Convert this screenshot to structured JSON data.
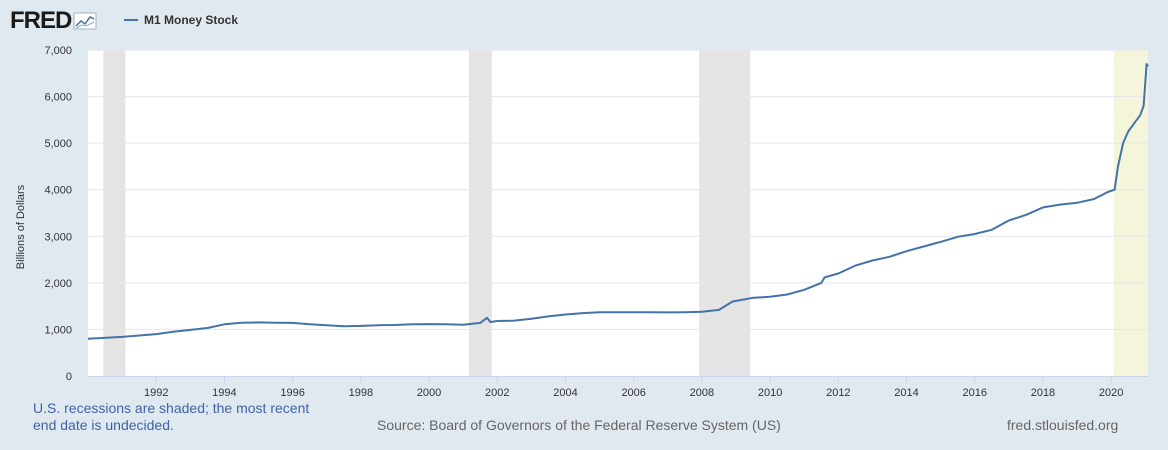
{
  "header": {
    "logo_text": "FRED",
    "legend_label": "M1 Money Stock"
  },
  "footer": {
    "recession_note": "U.S. recessions are shaded; the most recent end date is undecided.",
    "source": "Source: Board of Governors of the Federal Reserve System (US)",
    "url": "fred.stlouisfed.org"
  },
  "colors": {
    "line": "#4572a7",
    "recession": "#e4e4e4",
    "recession_ongoing": "#f5f5dc",
    "background": "#e1e9f0"
  },
  "chart_data": {
    "type": "line",
    "title": "",
    "ylabel": "Billions of Dollars",
    "xlabel": "",
    "xlim": [
      1990.0,
      2021.08
    ],
    "ylim": [
      0,
      7000
    ],
    "y_ticks": [
      0,
      1000,
      2000,
      3000,
      4000,
      5000,
      6000,
      7000
    ],
    "y_tick_labels": [
      "0",
      "1,000",
      "2,000",
      "3,000",
      "4,000",
      "5,000",
      "6,000",
      "7,000"
    ],
    "x_ticks": [
      1992,
      1994,
      1996,
      1998,
      2000,
      2002,
      2004,
      2006,
      2008,
      2010,
      2012,
      2014,
      2016,
      2018,
      2020
    ],
    "x_tick_labels": [
      "1992",
      "1994",
      "1996",
      "1998",
      "2000",
      "2002",
      "2004",
      "2006",
      "2008",
      "2010",
      "2012",
      "2014",
      "2016",
      "2018",
      "2020"
    ],
    "grid": true,
    "recessions": [
      {
        "start": 1990.45,
        "end": 1991.1
      },
      {
        "start": 2001.17,
        "end": 2001.84
      },
      {
        "start": 2007.92,
        "end": 2009.42
      },
      {
        "start": 2020.08,
        "end": 2021.08,
        "ongoing": true
      }
    ],
    "series": [
      {
        "name": "M1 Money Stock",
        "points": [
          [
            1990.0,
            800
          ],
          [
            1991.0,
            840
          ],
          [
            1992.0,
            900
          ],
          [
            1992.5,
            950
          ],
          [
            1993.0,
            990
          ],
          [
            1993.5,
            1030
          ],
          [
            1994.0,
            1110
          ],
          [
            1994.5,
            1145
          ],
          [
            1995.0,
            1150
          ],
          [
            1995.5,
            1145
          ],
          [
            1996.0,
            1140
          ],
          [
            1996.5,
            1110
          ],
          [
            1997.0,
            1090
          ],
          [
            1997.5,
            1070
          ],
          [
            1998.0,
            1075
          ],
          [
            1998.5,
            1090
          ],
          [
            1999.0,
            1095
          ],
          [
            1999.5,
            1110
          ],
          [
            2000.0,
            1115
          ],
          [
            2000.5,
            1110
          ],
          [
            2001.0,
            1100
          ],
          [
            2001.5,
            1140
          ],
          [
            2001.7,
            1250
          ],
          [
            2001.8,
            1160
          ],
          [
            2002.0,
            1180
          ],
          [
            2002.5,
            1190
          ],
          [
            2003.0,
            1230
          ],
          [
            2003.5,
            1280
          ],
          [
            2004.0,
            1320
          ],
          [
            2004.5,
            1350
          ],
          [
            2005.0,
            1370
          ],
          [
            2005.5,
            1370
          ],
          [
            2006.0,
            1370
          ],
          [
            2006.5,
            1370
          ],
          [
            2007.0,
            1365
          ],
          [
            2007.5,
            1370
          ],
          [
            2008.0,
            1380
          ],
          [
            2008.5,
            1420
          ],
          [
            2008.9,
            1600
          ],
          [
            2009.5,
            1680
          ],
          [
            2010.0,
            1700
          ],
          [
            2010.5,
            1750
          ],
          [
            2011.0,
            1850
          ],
          [
            2011.5,
            2000
          ],
          [
            2011.6,
            2120
          ],
          [
            2012.0,
            2200
          ],
          [
            2012.5,
            2370
          ],
          [
            2013.0,
            2480
          ],
          [
            2013.5,
            2560
          ],
          [
            2014.0,
            2680
          ],
          [
            2014.5,
            2780
          ],
          [
            2015.0,
            2880
          ],
          [
            2015.5,
            2990
          ],
          [
            2016.0,
            3050
          ],
          [
            2016.5,
            3140
          ],
          [
            2017.0,
            3340
          ],
          [
            2017.5,
            3460
          ],
          [
            2018.0,
            3620
          ],
          [
            2018.5,
            3680
          ],
          [
            2019.0,
            3720
          ],
          [
            2019.5,
            3800
          ],
          [
            2019.9,
            3950
          ],
          [
            2020.1,
            4000
          ],
          [
            2020.2,
            4500
          ],
          [
            2020.35,
            5000
          ],
          [
            2020.5,
            5250
          ],
          [
            2020.7,
            5450
          ],
          [
            2020.85,
            5600
          ],
          [
            2020.95,
            5800
          ],
          [
            2021.0,
            6300
          ],
          [
            2021.04,
            6700
          ],
          [
            2021.08,
            6650
          ]
        ]
      }
    ]
  }
}
